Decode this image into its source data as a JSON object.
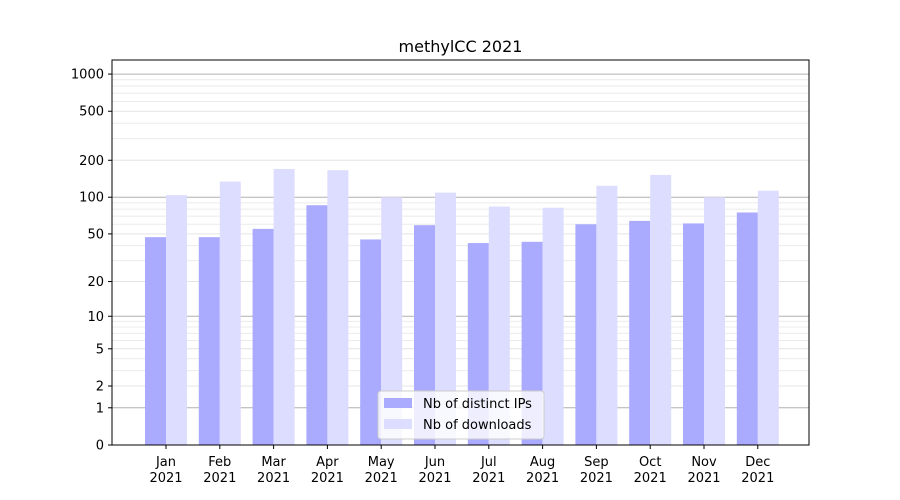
{
  "chart_data": {
    "type": "bar",
    "title": "methylCC 2021",
    "xlabel": "",
    "ylabel": "",
    "yscale": "symlog",
    "ylim": [
      0,
      1300
    ],
    "yticks": [
      0,
      1,
      2,
      5,
      10,
      20,
      50,
      100,
      200,
      500,
      1000
    ],
    "ytick_labels": [
      "0",
      "1",
      "2",
      "5",
      "10",
      "20",
      "50",
      "100",
      "200",
      "500",
      "1000"
    ],
    "categories": [
      [
        "Jan",
        "2021"
      ],
      [
        "Feb",
        "2021"
      ],
      [
        "Mar",
        "2021"
      ],
      [
        "Apr",
        "2021"
      ],
      [
        "May",
        "2021"
      ],
      [
        "Jun",
        "2021"
      ],
      [
        "Jul",
        "2021"
      ],
      [
        "Aug",
        "2021"
      ],
      [
        "Sep",
        "2021"
      ],
      [
        "Oct",
        "2021"
      ],
      [
        "Nov",
        "2021"
      ],
      [
        "Dec",
        "2021"
      ]
    ],
    "series": [
      {
        "name": "Nb of distinct IPs",
        "color": "#aaaaff",
        "values": [
          47,
          47,
          55,
          86,
          45,
          59,
          42,
          43,
          60,
          64,
          61,
          75
        ]
      },
      {
        "name": "Nb of downloads",
        "color": "#ddddff",
        "values": [
          104,
          134,
          170,
          166,
          100,
          109,
          84,
          82,
          124,
          152,
          100,
          113
        ]
      }
    ],
    "grid": true,
    "legend_position": "bottom-center"
  }
}
